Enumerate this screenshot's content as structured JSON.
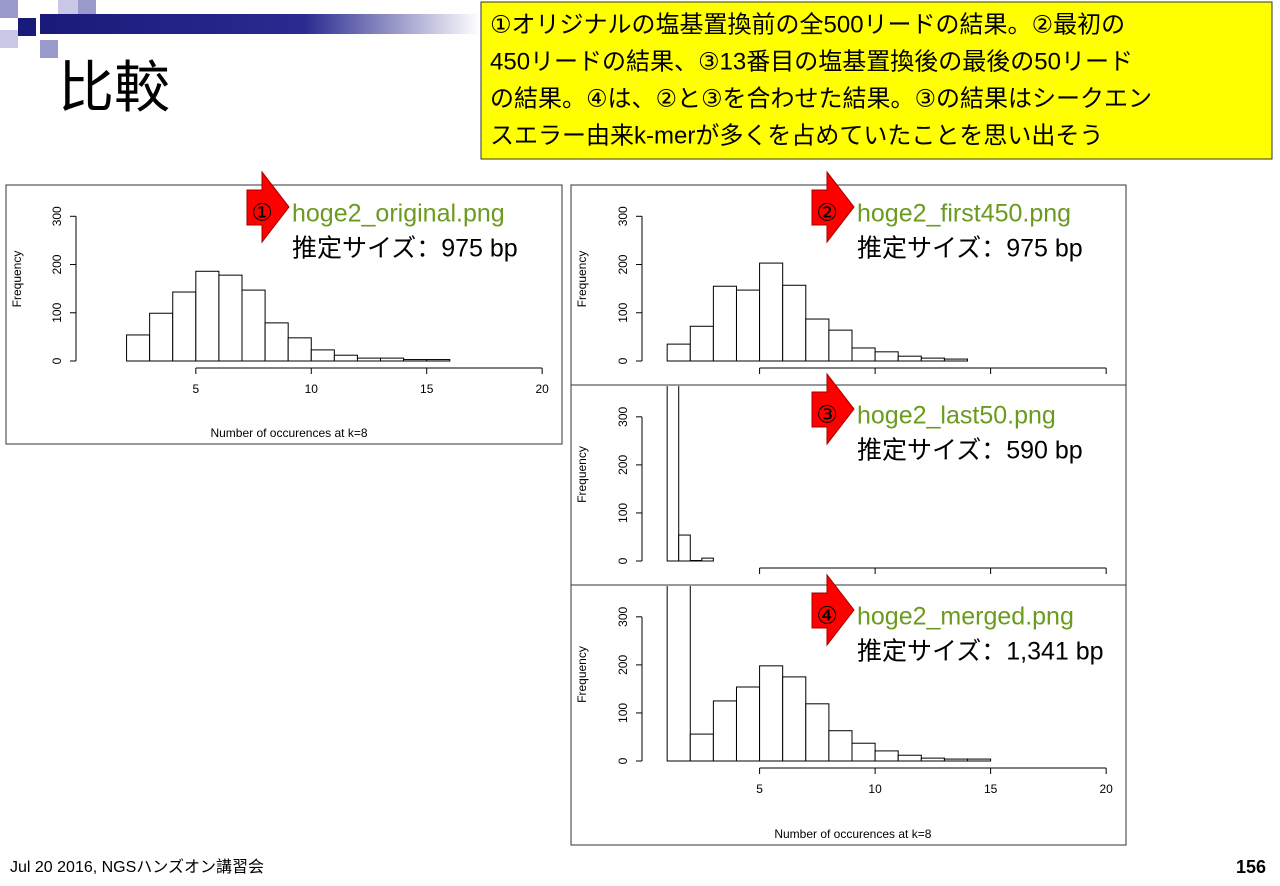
{
  "slide": {
    "title": "比較",
    "note_lines": [
      "①オリジナルの塩基置換前の全500リードの結果。②最初の",
      "450リードの結果、③13番目の塩基置換後の最後の50リード",
      "の結果。④は、②と③を合わせた結果。③の結果はシークエン",
      "スエラー由来k-merが多くを占めていたことを思い出そう"
    ],
    "footer": "Jul 20 2016, NGSハンズオン講習会",
    "page_number": "156"
  },
  "chart_data": [
    {
      "type": "histogram",
      "badge": "①",
      "file": "hoge2_original.png",
      "size_label": "推定サイズ：975 bp",
      "xlabel": "Number of occurences at k=8",
      "ylabel": "Frequency",
      "bins": [
        2,
        3,
        4,
        5,
        6,
        7,
        8,
        9,
        10,
        11,
        12,
        13,
        14,
        15,
        16
      ],
      "values": [
        54,
        99,
        143,
        186,
        178,
        147,
        79,
        48,
        23,
        12,
        6,
        6,
        3,
        3
      ],
      "xlim": [
        0.2,
        20.6
      ],
      "xticks": [
        5,
        10,
        15,
        20
      ],
      "show_xtick_labels": true,
      "ylim": [
        0,
        340
      ],
      "yticks": [
        0,
        100,
        200,
        300
      ]
    },
    {
      "type": "histogram",
      "badge": "②",
      "file": "hoge2_first450.png",
      "size_label": "推定サイズ：975 bp",
      "ylabel": "Frequency",
      "bins": [
        1,
        2,
        3,
        4,
        5,
        6,
        7,
        8,
        9,
        10,
        11,
        12,
        13,
        14
      ],
      "values": [
        35,
        72,
        155,
        147,
        203,
        157,
        87,
        64,
        27,
        19,
        10,
        6,
        4
      ],
      "xlim": [
        0.3,
        20.6
      ],
      "xticks": [
        5,
        10,
        15,
        20
      ],
      "show_xtick_labels": false,
      "ylim": [
        0,
        340
      ],
      "yticks": [
        0,
        100,
        200,
        300
      ]
    },
    {
      "type": "histogram",
      "badge": "③",
      "file": "hoge2_last50.png",
      "size_label": "推定サイズ：590 bp",
      "ylabel": "Frequency",
      "bins": [
        1,
        1.5,
        2,
        2.5,
        3
      ],
      "values": [
        400,
        54,
        1,
        6
      ],
      "xlim": [
        0.3,
        20.6
      ],
      "xticks": [
        5,
        10,
        15,
        20
      ],
      "show_xtick_labels": false,
      "ylim": [
        0,
        360
      ],
      "yticks": [
        0,
        100,
        200,
        300
      ]
    },
    {
      "type": "histogram",
      "badge": "④",
      "file": "hoge2_merged.png",
      "size_label": "推定サイズ：1,341 bp",
      "xlabel": "Number of occurences at k=8",
      "ylabel": "Frequency",
      "bins": [
        1,
        2,
        3,
        4,
        5,
        6,
        7,
        8,
        9,
        10,
        11,
        12,
        13,
        14,
        15
      ],
      "values": [
        400,
        56,
        125,
        154,
        198,
        175,
        119,
        63,
        37,
        21,
        12,
        6,
        4,
        4
      ],
      "xlim": [
        0.3,
        20.6
      ],
      "xticks": [
        5,
        10,
        15,
        20
      ],
      "show_xtick_labels": true,
      "ylim": [
        0,
        360
      ],
      "yticks": [
        0,
        100,
        200,
        300
      ]
    }
  ]
}
